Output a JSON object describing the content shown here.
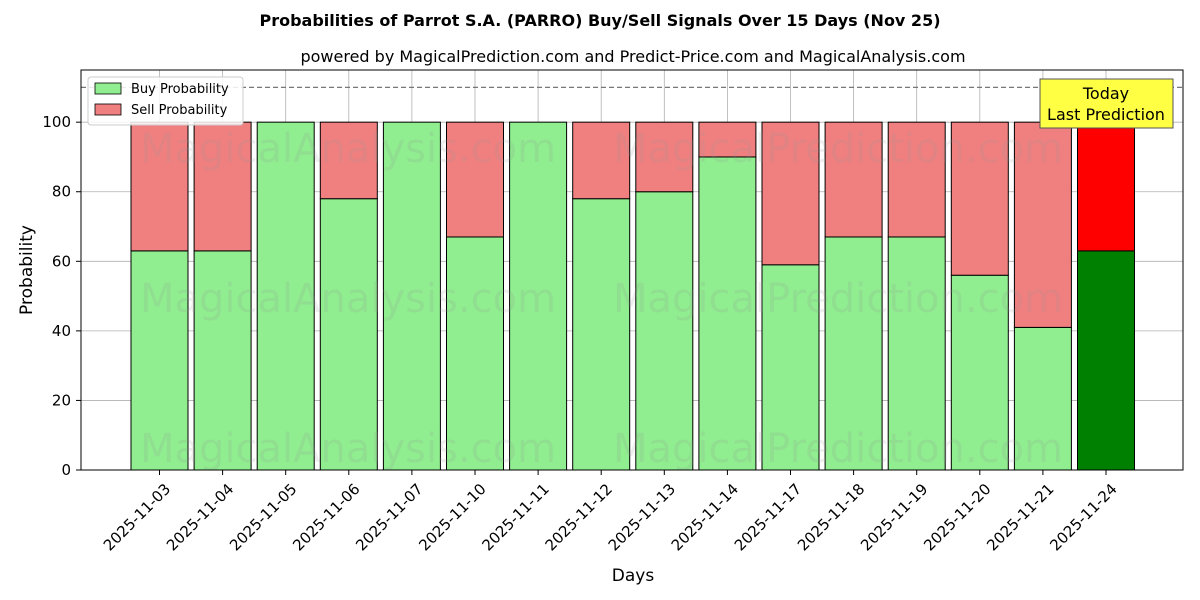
{
  "chart_data": {
    "type": "bar",
    "stacked": true,
    "title": "Probabilities of Parrot S.A. (PARRO) Buy/Sell Signals Over 15 Days (Nov 25)",
    "subtitle": "powered by MagicalPrediction.com and Predict-Price.com and MagicalAnalysis.com",
    "xlabel": "Days",
    "ylabel": "Probability",
    "ylim": [
      0,
      115
    ],
    "yticks": [
      0,
      20,
      40,
      60,
      80,
      100
    ],
    "grid": true,
    "legend_position": "top-left",
    "reference_line": 110,
    "categories": [
      "2025-11-03",
      "2025-11-04",
      "2025-11-05",
      "2025-11-06",
      "2025-11-07",
      "2025-11-10",
      "2025-11-11",
      "2025-11-12",
      "2025-11-13",
      "2025-11-14",
      "2025-11-17",
      "2025-11-18",
      "2025-11-19",
      "2025-11-20",
      "2025-11-21",
      "2025-11-24"
    ],
    "series": [
      {
        "name": "Buy Probability",
        "color": "#90ee90",
        "highlight_color": "#008000",
        "values": [
          63,
          63,
          100,
          78,
          100,
          67,
          100,
          78,
          80,
          90,
          59,
          67,
          67,
          56,
          41,
          63
        ]
      },
      {
        "name": "Sell Probability",
        "color": "#f08080",
        "highlight_color": "#ff0000",
        "values": [
          37,
          37,
          0,
          22,
          0,
          33,
          0,
          22,
          20,
          10,
          41,
          33,
          33,
          44,
          59,
          37
        ]
      }
    ],
    "annotation": {
      "line1": "Today",
      "line2": "Last Prediction",
      "color": "#ffff44"
    },
    "watermarks": [
      "MagicalAnalysis.com",
      "MagicalPrediction.com"
    ]
  }
}
